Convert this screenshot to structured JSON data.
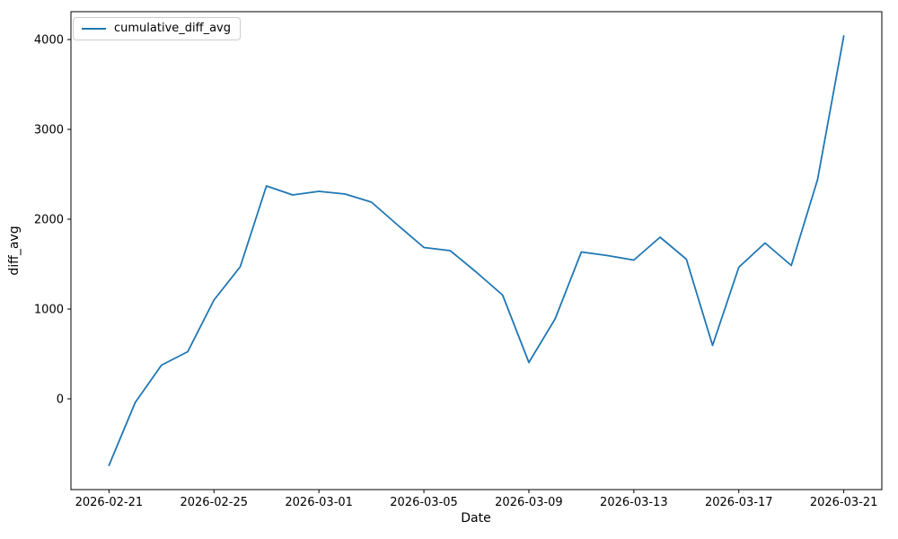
{
  "chart_data": {
    "type": "line",
    "title": "",
    "xlabel": "Date",
    "ylabel": "diff_avg",
    "x": [
      "2026-02-21",
      "2026-02-22",
      "2026-02-23",
      "2026-02-24",
      "2026-02-25",
      "2026-02-26",
      "2026-02-27",
      "2026-02-28",
      "2026-03-01",
      "2026-03-02",
      "2026-03-03",
      "2026-03-04",
      "2026-03-05",
      "2026-03-06",
      "2026-03-07",
      "2026-03-08",
      "2026-03-09",
      "2026-03-10",
      "2026-03-11",
      "2026-03-12",
      "2026-03-13",
      "2026-03-14",
      "2026-03-15",
      "2026-03-16",
      "2026-03-17",
      "2026-03-18",
      "2026-03-19",
      "2026-03-20",
      "2026-03-21"
    ],
    "series": [
      {
        "name": "cumulative_diff_avg",
        "color": "#1f77b4",
        "values": [
          -740,
          -40,
          375,
          525,
          1100,
          1470,
          2370,
          2270,
          2310,
          2280,
          2190,
          1935,
          1685,
          1650,
          1410,
          1155,
          405,
          890,
          1635,
          1595,
          1545,
          1800,
          1555,
          595,
          1465,
          1735,
          1485,
          2440,
          4040
        ]
      }
    ],
    "x_tick_labels": [
      "2026-02-21",
      "2026-02-25",
      "2026-03-01",
      "2026-03-05",
      "2026-03-09",
      "2026-03-13",
      "2026-03-17",
      "2026-03-21"
    ],
    "y_ticks": [
      0,
      1000,
      2000,
      3000,
      4000
    ],
    "xlim_day_index": [
      -1.45,
      29.45
    ],
    "ylim": [
      -1010,
      4310
    ],
    "grid": false,
    "legend_position": "upper-left",
    "axis_color": "#000000"
  }
}
